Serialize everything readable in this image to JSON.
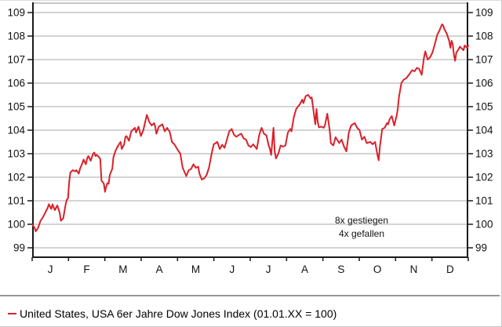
{
  "legend": {
    "label": "United States, USA 6er Jahre Dow Jones Index (01.01.XX = 100)"
  },
  "colors": {
    "line": "#d9222a",
    "grid": "#a8a8a8",
    "axis": "#1a1a1a",
    "frame_top": "#8c8c8c",
    "separator": "#2e2e2e",
    "text": "#111111"
  },
  "chart_data": {
    "type": "line",
    "title": "",
    "xlabel": "",
    "ylabel": "",
    "ylim": [
      99,
      109
    ],
    "y_ticks": [
      99,
      100,
      101,
      102,
      103,
      104,
      105,
      106,
      107,
      108,
      109
    ],
    "y_axis_sides": [
      "left",
      "right"
    ],
    "grid": "horizontal",
    "x_months": [
      "J",
      "F",
      "M",
      "A",
      "M",
      "J",
      "J",
      "A",
      "S",
      "O",
      "N",
      "D"
    ],
    "x_range_days": [
      0,
      365
    ],
    "annotations": [
      "8x gestiegen",
      "4x gefallen"
    ],
    "legend_position": "bottom-left",
    "series": [
      {
        "name": "United States, USA 6er Jahre Dow Jones Index (01.01.XX = 100)",
        "color": "#d9222a",
        "points": [
          [
            0,
            100.0
          ],
          [
            2,
            99.85
          ],
          [
            3,
            99.7
          ],
          [
            5,
            99.85
          ],
          [
            6,
            100.0
          ],
          [
            7,
            100.15
          ],
          [
            9,
            100.3
          ],
          [
            11,
            100.5
          ],
          [
            13,
            100.7
          ],
          [
            14,
            100.85
          ],
          [
            16,
            100.65
          ],
          [
            17,
            100.85
          ],
          [
            19,
            100.6
          ],
          [
            21,
            100.8
          ],
          [
            23,
            100.5
          ],
          [
            24,
            100.15
          ],
          [
            26,
            100.25
          ],
          [
            28,
            100.85
          ],
          [
            29,
            101.05
          ],
          [
            30,
            101.1
          ],
          [
            31,
            101.8
          ],
          [
            32,
            102.2
          ],
          [
            34,
            102.3
          ],
          [
            36,
            102.25
          ],
          [
            37,
            102.3
          ],
          [
            39,
            102.15
          ],
          [
            40,
            102.35
          ],
          [
            42,
            102.6
          ],
          [
            43,
            102.75
          ],
          [
            45,
            102.55
          ],
          [
            46,
            102.8
          ],
          [
            47,
            102.9
          ],
          [
            49,
            102.7
          ],
          [
            51,
            103.0
          ],
          [
            52,
            103.05
          ],
          [
            53,
            102.9
          ],
          [
            54,
            102.95
          ],
          [
            56,
            102.85
          ],
          [
            57,
            102.78
          ],
          [
            58,
            101.85
          ],
          [
            59,
            101.8
          ],
          [
            60,
            101.72
          ],
          [
            61,
            101.38
          ],
          [
            62,
            101.6
          ],
          [
            63,
            101.75
          ],
          [
            64,
            101.72
          ],
          [
            65,
            102.1
          ],
          [
            67,
            102.35
          ],
          [
            68,
            102.85
          ],
          [
            70,
            103.15
          ],
          [
            72,
            103.35
          ],
          [
            74,
            103.5
          ],
          [
            75,
            103.2
          ],
          [
            77,
            103.4
          ],
          [
            78,
            103.7
          ],
          [
            79,
            103.75
          ],
          [
            81,
            103.55
          ],
          [
            83,
            103.95
          ],
          [
            86,
            104.1
          ],
          [
            87,
            103.9
          ],
          [
            89,
            104.15
          ],
          [
            91,
            103.75
          ],
          [
            93,
            104.0
          ],
          [
            96,
            104.65
          ],
          [
            98,
            104.35
          ],
          [
            100,
            104.2
          ],
          [
            102,
            104.3
          ],
          [
            103,
            104.15
          ],
          [
            104,
            103.85
          ],
          [
            106,
            104.15
          ],
          [
            109,
            104.25
          ],
          [
            111,
            103.95
          ],
          [
            113,
            104.1
          ],
          [
            114,
            104.0
          ],
          [
            115,
            103.95
          ],
          [
            117,
            103.5
          ],
          [
            119,
            103.4
          ],
          [
            122,
            103.15
          ],
          [
            124,
            103.0
          ],
          [
            126,
            102.4
          ],
          [
            129,
            102.05
          ],
          [
            131,
            102.3
          ],
          [
            133,
            102.35
          ],
          [
            135,
            102.55
          ],
          [
            137,
            102.4
          ],
          [
            139,
            102.45
          ],
          [
            140,
            102.15
          ],
          [
            142,
            101.9
          ],
          [
            144,
            101.95
          ],
          [
            146,
            102.1
          ],
          [
            148,
            102.4
          ],
          [
            150,
            102.95
          ],
          [
            152,
            103.4
          ],
          [
            155,
            103.5
          ],
          [
            157,
            103.2
          ],
          [
            159,
            103.38
          ],
          [
            161,
            103.25
          ],
          [
            163,
            103.6
          ],
          [
            165,
            103.95
          ],
          [
            167,
            104.05
          ],
          [
            169,
            103.8
          ],
          [
            171,
            103.72
          ],
          [
            173,
            103.8
          ],
          [
            175,
            103.85
          ],
          [
            177,
            103.65
          ],
          [
            179,
            103.6
          ],
          [
            181,
            103.35
          ],
          [
            183,
            103.28
          ],
          [
            185,
            103.4
          ],
          [
            188,
            103.2
          ],
          [
            190,
            103.78
          ],
          [
            191,
            103.95
          ],
          [
            192,
            104.1
          ],
          [
            194,
            103.85
          ],
          [
            196,
            103.78
          ],
          [
            198,
            103.35
          ],
          [
            199,
            103.2
          ],
          [
            200,
            102.95
          ],
          [
            202,
            104.1
          ],
          [
            203,
            103.1
          ],
          [
            204,
            102.8
          ],
          [
            206,
            103.0
          ],
          [
            208,
            103.35
          ],
          [
            210,
            103.3
          ],
          [
            212,
            103.35
          ],
          [
            214,
            103.9
          ],
          [
            216,
            104.05
          ],
          [
            217,
            103.95
          ],
          [
            219,
            104.55
          ],
          [
            221,
            104.9
          ],
          [
            224,
            105.1
          ],
          [
            226,
            105.3
          ],
          [
            227,
            105.15
          ],
          [
            229,
            105.45
          ],
          [
            231,
            105.5
          ],
          [
            233,
            105.35
          ],
          [
            234,
            105.4
          ],
          [
            237,
            104.25
          ],
          [
            238,
            104.9
          ],
          [
            239,
            104.35
          ],
          [
            240,
            104.12
          ],
          [
            242,
            104.15
          ],
          [
            244,
            104.1
          ],
          [
            245,
            104.2
          ],
          [
            247,
            104.7
          ],
          [
            249,
            104.0
          ],
          [
            250,
            103.45
          ],
          [
            252,
            103.35
          ],
          [
            254,
            103.7
          ],
          [
            257,
            103.45
          ],
          [
            259,
            103.6
          ],
          [
            261,
            103.3
          ],
          [
            263,
            103.1
          ],
          [
            265,
            103.9
          ],
          [
            267,
            104.2
          ],
          [
            270,
            104.3
          ],
          [
            272,
            104.1
          ],
          [
            274,
            104.0
          ],
          [
            276,
            103.6
          ],
          [
            278,
            103.72
          ],
          [
            280,
            103.45
          ],
          [
            283,
            103.5
          ],
          [
            285,
            103.4
          ],
          [
            287,
            103.5
          ],
          [
            289,
            102.95
          ],
          [
            290,
            102.72
          ],
          [
            291,
            103.3
          ],
          [
            293,
            104.05
          ],
          [
            295,
            104.1
          ],
          [
            297,
            104.3
          ],
          [
            298,
            104.25
          ],
          [
            299,
            104.45
          ],
          [
            301,
            104.6
          ],
          [
            303,
            104.2
          ],
          [
            305,
            104.6
          ],
          [
            306,
            104.9
          ],
          [
            307,
            105.4
          ],
          [
            309,
            106.0
          ],
          [
            311,
            106.15
          ],
          [
            313,
            106.2
          ],
          [
            316,
            106.4
          ],
          [
            318,
            106.55
          ],
          [
            320,
            106.5
          ],
          [
            322,
            106.65
          ],
          [
            324,
            106.6
          ],
          [
            326,
            106.35
          ],
          [
            328,
            107.1
          ],
          [
            329,
            107.35
          ],
          [
            331,
            107.0
          ],
          [
            333,
            107.1
          ],
          [
            334,
            107.2
          ],
          [
            335,
            107.3
          ],
          [
            337,
            107.65
          ],
          [
            339,
            108.05
          ],
          [
            341,
            108.25
          ],
          [
            343,
            108.5
          ],
          [
            344,
            108.45
          ],
          [
            345,
            108.3
          ],
          [
            347,
            108.1
          ],
          [
            349,
            107.8
          ],
          [
            350,
            107.5
          ],
          [
            351,
            107.8
          ],
          [
            352,
            107.65
          ],
          [
            353,
            107.2
          ],
          [
            354,
            106.95
          ],
          [
            355,
            107.3
          ],
          [
            357,
            107.45
          ],
          [
            358,
            107.55
          ],
          [
            360,
            107.45
          ],
          [
            361,
            107.4
          ],
          [
            362,
            107.6
          ],
          [
            364,
            107.5
          ],
          [
            365,
            107.6
          ]
        ]
      }
    ]
  }
}
